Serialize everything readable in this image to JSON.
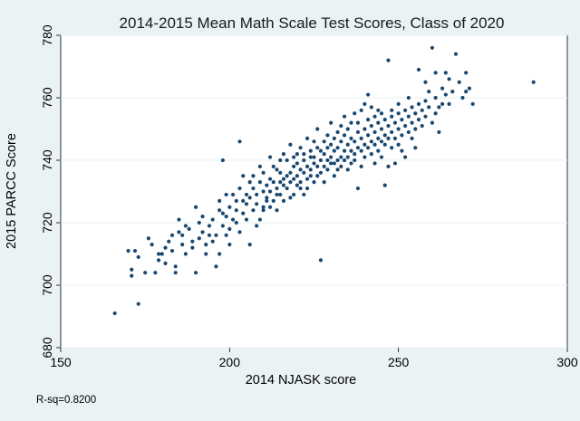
{
  "chart_data": {
    "type": "scatter",
    "title": "2014-2015 Mean Math Scale Test Scores, Class of 2020",
    "xlabel": "2014 NJASK score",
    "ylabel": "2015 PARCC Score",
    "xlim": [
      150,
      300
    ],
    "ylim": [
      680,
      780
    ],
    "xticks": [
      "150",
      "200",
      "250",
      "300"
    ],
    "yticks": [
      "680",
      "700",
      "720",
      "740",
      "760",
      "780"
    ],
    "grid": "horizontal",
    "marker_color": "#1a476f",
    "annotation": "R-sq=0.8200",
    "points": [
      [
        166,
        691
      ],
      [
        170,
        711
      ],
      [
        171,
        703
      ],
      [
        171,
        705
      ],
      [
        172,
        711
      ],
      [
        173,
        709
      ],
      [
        173,
        694
      ],
      [
        175,
        704
      ],
      [
        176,
        715
      ],
      [
        177,
        713
      ],
      [
        178,
        704
      ],
      [
        179,
        708
      ],
      [
        179,
        710
      ],
      [
        180,
        710
      ],
      [
        181,
        712
      ],
      [
        181,
        707
      ],
      [
        182,
        714
      ],
      [
        183,
        716
      ],
      [
        183,
        711
      ],
      [
        184,
        706
      ],
      [
        184,
        704
      ],
      [
        185,
        717
      ],
      [
        185,
        721
      ],
      [
        186,
        713
      ],
      [
        186,
        716
      ],
      [
        187,
        710
      ],
      [
        187,
        719
      ],
      [
        188,
        718
      ],
      [
        189,
        714
      ],
      [
        189,
        712
      ],
      [
        190,
        704
      ],
      [
        190,
        725
      ],
      [
        191,
        720
      ],
      [
        191,
        715
      ],
      [
        192,
        717
      ],
      [
        192,
        722
      ],
      [
        193,
        710
      ],
      [
        193,
        713
      ],
      [
        194,
        716
      ],
      [
        194,
        719
      ],
      [
        195,
        714
      ],
      [
        195,
        721
      ],
      [
        196,
        706
      ],
      [
        196,
        716
      ],
      [
        197,
        724
      ],
      [
        197,
        710
      ],
      [
        197,
        727
      ],
      [
        198,
        740
      ],
      [
        198,
        723
      ],
      [
        198,
        719
      ],
      [
        199,
        722
      ],
      [
        199,
        729
      ],
      [
        199,
        716
      ],
      [
        200,
        725
      ],
      [
        200,
        718
      ],
      [
        200,
        713
      ],
      [
        201,
        721
      ],
      [
        201,
        729
      ],
      [
        202,
        727
      ],
      [
        202,
        720
      ],
      [
        202,
        724
      ],
      [
        203,
        746
      ],
      [
        203,
        731
      ],
      [
        203,
        717
      ],
      [
        204,
        723
      ],
      [
        204,
        735
      ],
      [
        204,
        727
      ],
      [
        205,
        729
      ],
      [
        205,
        726
      ],
      [
        205,
        721
      ],
      [
        206,
        713
      ],
      [
        206,
        733
      ],
      [
        206,
        728
      ],
      [
        207,
        724
      ],
      [
        207,
        735
      ],
      [
        207,
        731
      ],
      [
        208,
        719
      ],
      [
        208,
        726
      ],
      [
        208,
        729
      ],
      [
        209,
        733
      ],
      [
        209,
        738
      ],
      [
        209,
        721
      ],
      [
        210,
        730
      ],
      [
        210,
        725
      ],
      [
        210,
        724
      ],
      [
        210,
        736
      ],
      [
        211,
        728
      ],
      [
        211,
        732
      ],
      [
        211,
        727
      ],
      [
        212,
        734
      ],
      [
        212,
        730
      ],
      [
        212,
        741
      ],
      [
        212,
        725
      ],
      [
        213,
        727
      ],
      [
        213,
        738
      ],
      [
        213,
        733
      ],
      [
        214,
        729
      ],
      [
        214,
        737
      ],
      [
        214,
        731
      ],
      [
        214,
        724
      ],
      [
        215,
        736
      ],
      [
        215,
        740
      ],
      [
        215,
        733
      ],
      [
        215,
        729
      ],
      [
        216,
        734
      ],
      [
        216,
        732
      ],
      [
        216,
        742
      ],
      [
        216,
        727
      ],
      [
        217,
        740
      ],
      [
        217,
        735
      ],
      [
        217,
        731
      ],
      [
        218,
        736
      ],
      [
        218,
        733
      ],
      [
        218,
        745
      ],
      [
        218,
        728
      ],
      [
        219,
        738
      ],
      [
        219,
        734
      ],
      [
        219,
        741
      ],
      [
        219,
        729
      ],
      [
        220,
        732
      ],
      [
        220,
        739
      ],
      [
        220,
        735
      ],
      [
        220,
        742
      ],
      [
        221,
        737
      ],
      [
        221,
        731
      ],
      [
        221,
        744
      ],
      [
        221,
        733
      ],
      [
        222,
        740
      ],
      [
        222,
        736
      ],
      [
        222,
        729
      ],
      [
        222,
        742
      ],
      [
        223,
        738
      ],
      [
        223,
        734
      ],
      [
        223,
        747
      ],
      [
        223,
        731
      ],
      [
        224,
        741
      ],
      [
        224,
        737
      ],
      [
        224,
        743
      ],
      [
        224,
        735
      ],
      [
        225,
        739
      ],
      [
        225,
        733
      ],
      [
        225,
        746
      ],
      [
        225,
        741
      ],
      [
        226,
        738
      ],
      [
        226,
        744
      ],
      [
        226,
        735
      ],
      [
        226,
        750
      ],
      [
        227,
        740
      ],
      [
        227,
        736
      ],
      [
        227,
        708
      ],
      [
        227,
        743
      ],
      [
        228,
        742
      ],
      [
        228,
        738
      ],
      [
        228,
        746
      ],
      [
        228,
        733
      ],
      [
        229,
        740
      ],
      [
        229,
        744
      ],
      [
        229,
        737
      ],
      [
        229,
        748
      ],
      [
        230,
        741
      ],
      [
        230,
        745
      ],
      [
        230,
        739
      ],
      [
        230,
        752
      ],
      [
        231,
        743
      ],
      [
        231,
        739
      ],
      [
        231,
        747
      ],
      [
        231,
        735
      ],
      [
        232,
        744
      ],
      [
        232,
        740
      ],
      [
        232,
        749
      ],
      [
        232,
        737
      ],
      [
        233,
        746
      ],
      [
        233,
        741
      ],
      [
        233,
        751
      ],
      [
        233,
        738
      ],
      [
        234,
        743
      ],
      [
        234,
        748
      ],
      [
        234,
        740
      ],
      [
        234,
        754
      ],
      [
        235,
        745
      ],
      [
        235,
        741
      ],
      [
        235,
        750
      ],
      [
        235,
        737
      ],
      [
        236,
        747
      ],
      [
        236,
        743
      ],
      [
        236,
        752
      ],
      [
        236,
        739
      ],
      [
        237,
        746
      ],
      [
        237,
        742
      ],
      [
        237,
        755
      ],
      [
        237,
        740
      ],
      [
        238,
        749
      ],
      [
        238,
        744
      ],
      [
        238,
        752
      ],
      [
        238,
        731
      ],
      [
        239,
        747
      ],
      [
        239,
        743
      ],
      [
        239,
        756
      ],
      [
        239,
        738
      ],
      [
        240,
        750
      ],
      [
        240,
        745
      ],
      [
        240,
        758
      ],
      [
        240,
        741
      ],
      [
        241,
        748
      ],
      [
        241,
        744
      ],
      [
        241,
        753
      ],
      [
        241,
        761
      ],
      [
        242,
        751
      ],
      [
        242,
        746
      ],
      [
        242,
        757
      ],
      [
        242,
        742
      ],
      [
        243,
        749
      ],
      [
        243,
        745
      ],
      [
        243,
        754
      ],
      [
        243,
        739
      ],
      [
        244,
        752
      ],
      [
        244,
        747
      ],
      [
        244,
        756
      ],
      [
        244,
        743
      ],
      [
        245,
        750
      ],
      [
        245,
        746
      ],
      [
        245,
        755
      ],
      [
        245,
        741
      ],
      [
        246,
        753
      ],
      [
        246,
        748
      ],
      [
        246,
        732
      ],
      [
        246,
        745
      ],
      [
        247,
        751
      ],
      [
        247,
        747
      ],
      [
        247,
        772
      ],
      [
        247,
        738
      ],
      [
        248,
        754
      ],
      [
        248,
        749
      ],
      [
        248,
        744
      ],
      [
        248,
        756
      ],
      [
        249,
        752
      ],
      [
        249,
        747
      ],
      [
        249,
        739
      ],
      [
        250,
        755
      ],
      [
        250,
        750
      ],
      [
        250,
        745
      ],
      [
        250,
        758
      ],
      [
        251,
        753
      ],
      [
        251,
        748
      ],
      [
        251,
        743
      ],
      [
        252,
        756
      ],
      [
        252,
        751
      ],
      [
        252,
        741
      ],
      [
        253,
        754
      ],
      [
        253,
        749
      ],
      [
        253,
        760
      ],
      [
        254,
        757
      ],
      [
        254,
        752
      ],
      [
        254,
        747
      ],
      [
        255,
        755
      ],
      [
        255,
        750
      ],
      [
        255,
        744
      ],
      [
        256,
        758
      ],
      [
        256,
        753
      ],
      [
        256,
        769
      ],
      [
        257,
        756
      ],
      [
        257,
        751
      ],
      [
        258,
        759
      ],
      [
        258,
        754
      ],
      [
        258,
        765
      ],
      [
        259,
        757
      ],
      [
        259,
        762
      ],
      [
        260,
        752
      ],
      [
        260,
        776
      ],
      [
        261,
        760
      ],
      [
        261,
        755
      ],
      [
        261,
        768
      ],
      [
        262,
        757
      ],
      [
        262,
        749
      ],
      [
        263,
        763
      ],
      [
        263,
        758
      ],
      [
        264,
        761
      ],
      [
        264,
        768
      ],
      [
        265,
        766
      ],
      [
        265,
        758
      ],
      [
        266,
        762
      ],
      [
        267,
        774
      ],
      [
        268,
        765
      ],
      [
        269,
        760
      ],
      [
        270,
        762
      ],
      [
        270,
        768
      ],
      [
        271,
        763
      ],
      [
        272,
        758
      ],
      [
        290,
        765
      ]
    ]
  }
}
